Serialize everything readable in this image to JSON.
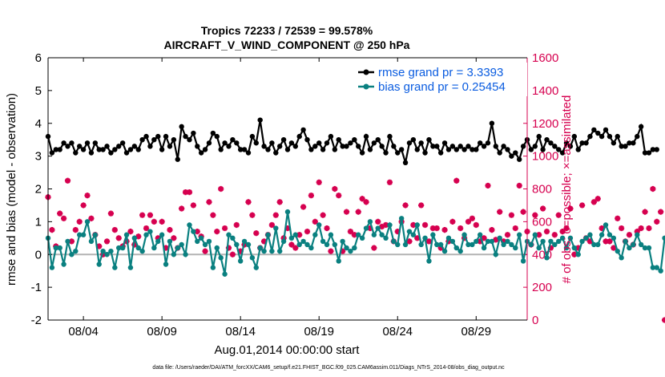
{
  "chart_data": {
    "type": "line",
    "title_line1": "Tropics 72233 / 72539 = 99.578%",
    "title_line2": "AIRCRAFT_V_WIND_COMPONENT @ 250 hPa",
    "xlabel": "Aug.01,2014 00:00:00 start",
    "ylabel_left": "rmse and bias (model - observation)",
    "ylabel_right": "# of obs: o=possible; ×=assimilated",
    "footer": "data file: /Users/raeder/DAI/ATM_forcXX/CAM6_setup/f.e21.FHIST_BGC.f09_025.CAM6assim.011/Diags_NTrS_2014-08/obs_diag_output.nc",
    "xlim": [
      1.75,
      32.25
    ],
    "ylim_left": [
      -2,
      6
    ],
    "ylim_right": [
      0,
      1600
    ],
    "x_tick_values": [
      4,
      9,
      14,
      19,
      24,
      29
    ],
    "x_tick_labels": [
      "08/04",
      "08/09",
      "08/14",
      "08/19",
      "08/24",
      "08/29"
    ],
    "y_left_ticks": [
      -2,
      -1,
      0,
      1,
      2,
      3,
      4,
      5,
      6
    ],
    "y_right_ticks": [
      0,
      200,
      400,
      600,
      800,
      1000,
      1200,
      1400,
      1600
    ],
    "x_start": 1.75,
    "x_step": 0.25,
    "colors": {
      "rmse": "#000000",
      "bias": "#0a8080",
      "obs": "#d6004f",
      "zero_line": "#b3b3b3",
      "legend_text": "#0a5ce0"
    },
    "series": [
      {
        "name": "rmse grand pr = 3.3393",
        "values": [
          3.6,
          3.1,
          3.2,
          3.2,
          3.4,
          3.3,
          3.4,
          3.1,
          3.3,
          3.2,
          3.4,
          3.1,
          3.4,
          3.2,
          3.2,
          3.3,
          3.1,
          3.2,
          3.3,
          3.4,
          3.1,
          3.2,
          3.3,
          3.2,
          3.5,
          3.6,
          3.3,
          3.5,
          3.6,
          3.2,
          3.6,
          3.3,
          3.5,
          2.9,
          3.9,
          3.6,
          3.5,
          3.7,
          3.3,
          3.1,
          3.2,
          3.4,
          3.7,
          3.6,
          3.2,
          3.4,
          3.3,
          3.5,
          3.4,
          3.2,
          3.2,
          3.1,
          3.6,
          3.4,
          4.1,
          3.3,
          3.2,
          3.4,
          3.1,
          3.3,
          3.5,
          3.2,
          3.4,
          3.3,
          3.6,
          3.8,
          3.5,
          3.2,
          3.3,
          3.4,
          3.2,
          3.4,
          3.6,
          3.2,
          3.5,
          3.3,
          3.3,
          3.4,
          3.5,
          3.3,
          3.1,
          3.6,
          3.2,
          3.4,
          3.5,
          3.3,
          3.1,
          3.6,
          3.3,
          3.1,
          3.2,
          2.8,
          3.4,
          3.5,
          3.2,
          3.4,
          3.1,
          3.5,
          3.3,
          3.3,
          3.1,
          3.4,
          3.2,
          3.3,
          3.2,
          3.3,
          3.2,
          3.3,
          3.2,
          3.2,
          3.4,
          3.3,
          3.4,
          4.0,
          3.3,
          3.1,
          3.3,
          3.2,
          3.0,
          3.1,
          2.9,
          3.3,
          3.5,
          3.2,
          3.3,
          3.6,
          3.2,
          3.5,
          3.4,
          3.3,
          3.2,
          3.1,
          3.4,
          3.3,
          3.6,
          3.2,
          3.4,
          3.4,
          3.6,
          3.8,
          3.7,
          3.6,
          3.8,
          3.6,
          3.4,
          3.6,
          3.3,
          3.3,
          3.4,
          3.4,
          3.6,
          3.9,
          3.1,
          3.1,
          3.2,
          3.2
        ]
      },
      {
        "name": "bias grand pr = 0.25454",
        "values": [
          0.5,
          -0.4,
          0.2,
          0.2,
          -0.3,
          0.4,
          0.0,
          0.1,
          0.6,
          0.6,
          1.0,
          0.4,
          0.6,
          -0.3,
          0.1,
          0.0,
          0.1,
          -0.4,
          0.2,
          0.2,
          0.6,
          -0.4,
          0.5,
          0.2,
          0.1,
          0.6,
          0.7,
          0.2,
          0.4,
          0.6,
          -0.3,
          0.4,
          0.0,
          0.2,
          0.3,
          0.0,
          0.9,
          0.7,
          0.4,
          0.5,
          0.3,
          0.4,
          -0.4,
          0.2,
          -0.1,
          -0.6,
          0.6,
          0.5,
          0.3,
          -0.2,
          0.4,
          0.3,
          -0.1,
          -0.4,
          0.2,
          0.1,
          0.6,
          0.1,
          0.8,
          0.1,
          0.4,
          1.3,
          0.5,
          0.6,
          0.3,
          0.4,
          0.3,
          0.2,
          0.6,
          0.9,
          0.4,
          0.3,
          0.6,
          0.3,
          -0.2,
          0.4,
          0.2,
          0.1,
          0.2,
          0.6,
          0.5,
          0.8,
          1.0,
          0.6,
          0.8,
          0.6,
          0.5,
          0.9,
          0.4,
          0.3,
          1.1,
          0.3,
          0.7,
          0.6,
          0.9,
          0.3,
          0.5,
          -0.2,
          0.6,
          0.3,
          0.3,
          0.1,
          0.5,
          0.4,
          0.2,
          0.1,
          0.6,
          0.3,
          0.3,
          0.4,
          0.6,
          0.2,
          0.4,
          0.4,
          0.0,
          0.5,
          0.3,
          0.4,
          0.3,
          0.2,
          0.6,
          -0.2,
          0.4,
          0.3,
          0.6,
          0.2,
          0.4,
          -0.1,
          0.4,
          0.3,
          0.4,
          0.5,
          0.2,
          0.5,
          0.2,
          0.0,
          0.4,
          0.5,
          0.6,
          0.3,
          0.3,
          0.6,
          0.9,
          0.6,
          0.5,
          0.1,
          -0.1,
          0.4,
          0.2,
          0.3,
          0.6,
          0.3,
          0.2,
          0.2,
          -0.4,
          -0.4,
          -0.5,
          0.5
        ]
      },
      {
        "name": "# of obs assimilated",
        "values": [
          750,
          550,
          450,
          650,
          620,
          850,
          480,
          550,
          600,
          700,
          760,
          620,
          520,
          450,
          400,
          480,
          650,
          550,
          500,
          450,
          480,
          540,
          460,
          510,
          640,
          560,
          640,
          600,
          500,
          600,
          440,
          550,
          500,
          440,
          680,
          780,
          780,
          700,
          540,
          510,
          420,
          720,
          640,
          540,
          800,
          560,
          440,
          400,
          580,
          420,
          460,
          720,
          640,
          530,
          440,
          480,
          520,
          580,
          640,
          720,
          500,
          560,
          460,
          440,
          520,
          690,
          540,
          760,
          600,
          840,
          640,
          560,
          420,
          800,
          760,
          420,
          660,
          540,
          520,
          660,
          740,
          720,
          560,
          440,
          600,
          570,
          580,
          840,
          480,
          540,
          600,
          700,
          480,
          580,
          500,
          700,
          580,
          480,
          560,
          560,
          440,
          550,
          480,
          600,
          850,
          560,
          500,
          600,
          620,
          580,
          480,
          500,
          820,
          550,
          490,
          660,
          480,
          520,
          640,
          560,
          820,
          660,
          540,
          460,
          640,
          520,
          680,
          540,
          440,
          520,
          640,
          540,
          560,
          680,
          400,
          440,
          700,
          500,
          480,
          720,
          740,
          560,
          480,
          480,
          440,
          620,
          560,
          480,
          520,
          460,
          540,
          560,
          660,
          560,
          800,
          600,
          660,
          0
        ]
      }
    ]
  }
}
